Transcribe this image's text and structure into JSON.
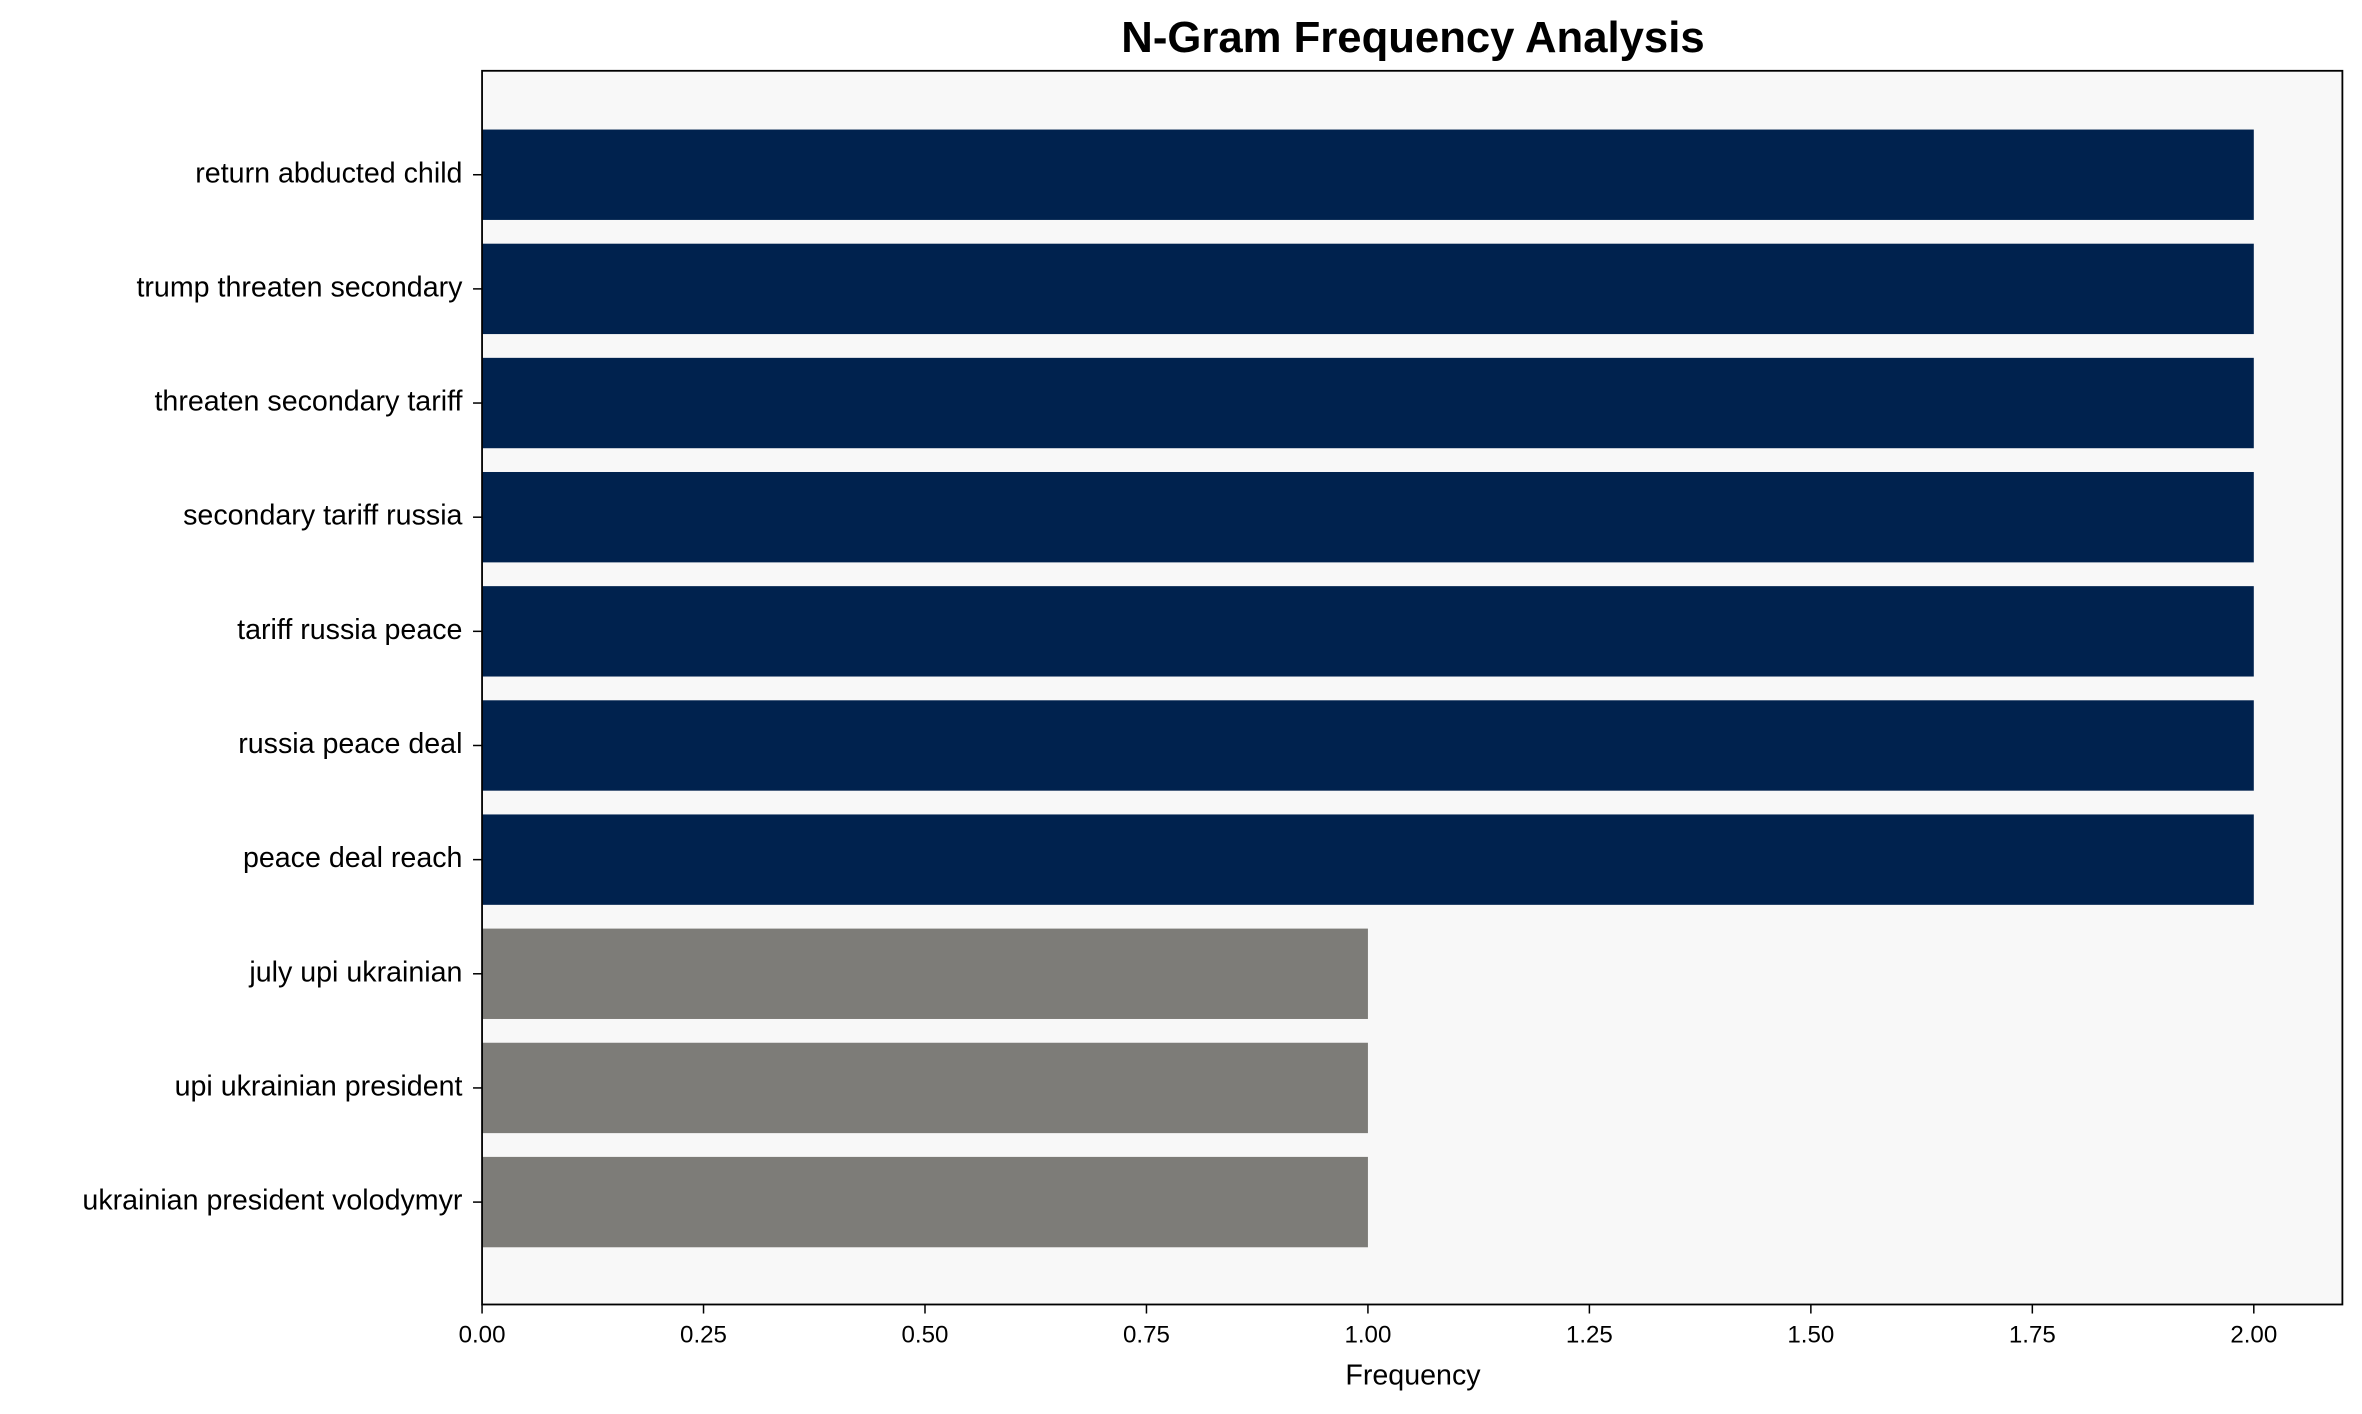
{
  "chart_data": {
    "type": "barh",
    "title": "N-Gram Frequency Analysis",
    "x_label": "Frequency",
    "categories": [
      "return abducted child",
      "trump threaten secondary",
      "threaten secondary tariff",
      "secondary tariff russia",
      "tariff russia peace",
      "russia peace deal",
      "peace deal reach",
      "july upi ukrainian",
      "upi ukrainian president",
      "ukrainian president volodymyr"
    ],
    "values": [
      2,
      2,
      2,
      2,
      2,
      2,
      2,
      1,
      1,
      1
    ],
    "colors": [
      "#00224e",
      "#00224e",
      "#00224e",
      "#00224e",
      "#00224e",
      "#00224e",
      "#00224e",
      "#7d7c78",
      "#7d7c78",
      "#7d7c78"
    ],
    "xlim": [
      0,
      2.1
    ],
    "xticks": [
      {
        "value": 0,
        "label": "0.00"
      },
      0.25,
      {
        "value": 0.5,
        "label": "0.50"
      },
      0.75,
      {
        "value": 1,
        "label": "1.00"
      },
      1.25,
      {
        "value": 1.5,
        "label": "1.50"
      },
      1.75,
      {
        "value": 2,
        "label": "2.00"
      }
    ]
  }
}
